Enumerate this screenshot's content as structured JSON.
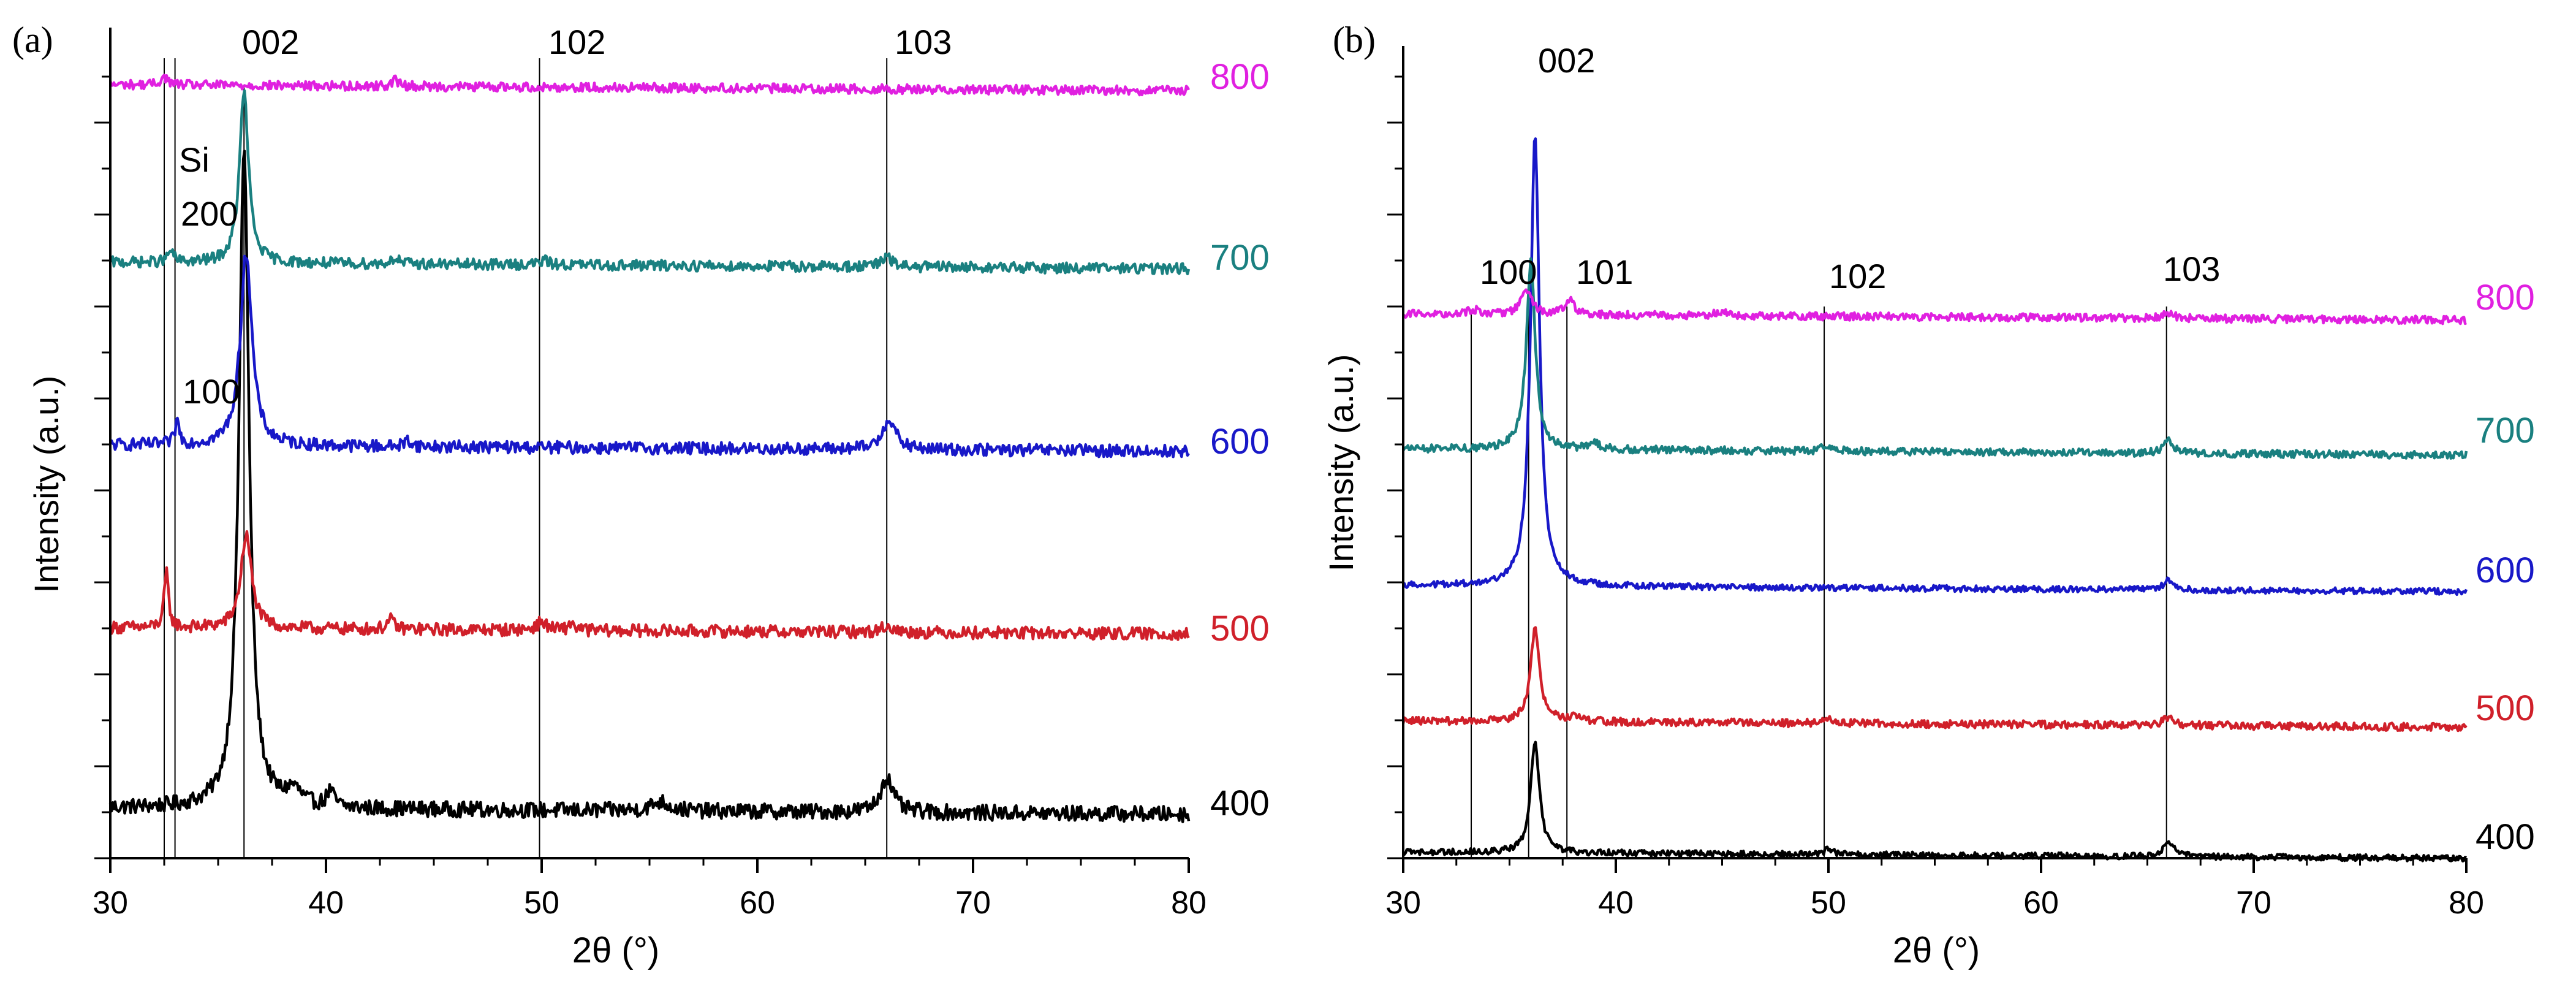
{
  "chart_data": [
    {
      "type": "line",
      "panel_label": "(a)",
      "xlabel": "2θ (°)",
      "ylabel": "Intensity (a.u.)",
      "xlim": [
        30,
        80
      ],
      "x_ticks": [
        30,
        40,
        50,
        60,
        70,
        80
      ],
      "y_ticks_labeled": false,
      "series": [
        {
          "name": "400",
          "color": "#000000",
          "baseline": 0.05,
          "noise": 0.01,
          "peaks": [
            [
              36.2,
              0.85,
              0.28
            ],
            [
              38.5,
              0.02,
              0.4
            ],
            [
              40.2,
              0.02,
              0.2
            ],
            [
              55.5,
              0.012,
              0.5
            ],
            [
              66.0,
              0.045,
              0.35
            ]
          ]
        },
        {
          "name": "500",
          "color": "#d0202a",
          "baseline": 0.255,
          "noise": 0.008,
          "peaks": [
            [
              32.6,
              0.07,
              0.12
            ],
            [
              36.3,
              0.12,
              0.3
            ],
            [
              43.0,
              0.012,
              0.2
            ],
            [
              50.0,
              0.01,
              0.3
            ],
            [
              51.4,
              0.01,
              0.15
            ],
            [
              66.0,
              0.008,
              0.3
            ]
          ]
        },
        {
          "name": "600",
          "color": "#1818c8",
          "baseline": 0.465,
          "noise": 0.008,
          "peaks": [
            [
              33.1,
              0.03,
              0.12
            ],
            [
              36.3,
              0.25,
              0.32
            ],
            [
              43.8,
              0.008,
              0.2
            ],
            [
              66.1,
              0.04,
              0.35
            ]
          ]
        },
        {
          "name": "700",
          "color": "#1a8080",
          "baseline": 0.665,
          "noise": 0.007,
          "peaks": [
            [
              32.8,
              0.015,
              0.15
            ],
            [
              36.2,
              0.22,
              0.25
            ],
            [
              43.2,
              0.008,
              0.2
            ],
            [
              50.1,
              0.005,
              0.3
            ],
            [
              66.0,
              0.012,
              0.3
            ]
          ]
        },
        {
          "name": "800",
          "color": "#e020e0",
          "baseline": 0.865,
          "noise": 0.006,
          "peaks": [
            [
              32.5,
              0.01,
              0.2
            ],
            [
              43.2,
              0.008,
              0.2
            ]
          ]
        }
      ],
      "reference_lines": [
        32.5,
        33.0,
        36.2,
        49.9,
        66.0
      ],
      "annotations": [
        {
          "text": "002",
          "x": 36.2
        },
        {
          "text": "102",
          "x": 50.0
        },
        {
          "text": "103",
          "x": 66.0
        },
        {
          "text": "Si",
          "x": 32.8
        },
        {
          "text": "200",
          "x": 33.5
        },
        {
          "text": "100",
          "x": 33.5
        }
      ]
    },
    {
      "type": "line",
      "panel_label": "(b)",
      "xlabel": "2θ (°)",
      "ylabel": "Intensity (a.u.)",
      "xlim": [
        30,
        80
      ],
      "x_ticks": [
        30,
        40,
        50,
        60,
        70,
        80
      ],
      "y_ticks_labeled": false,
      "series": [
        {
          "name": "400",
          "color": "#000000",
          "baseline": 0.01,
          "noise": 0.004,
          "peaks": [
            [
              36.2,
              0.14,
              0.25
            ],
            [
              50.0,
              0.006,
              0.3
            ],
            [
              66.0,
              0.02,
              0.3
            ]
          ]
        },
        {
          "name": "500",
          "color": "#d0202a",
          "baseline": 0.17,
          "noise": 0.005,
          "peaks": [
            [
              36.2,
              0.12,
              0.25
            ],
            [
              38.0,
              0.005,
              0.5
            ],
            [
              50.0,
              0.005,
              0.3
            ],
            [
              66.0,
              0.01,
              0.3
            ]
          ]
        },
        {
          "name": "600",
          "color": "#1818c8",
          "baseline": 0.33,
          "noise": 0.004,
          "peaks": [
            [
              36.2,
              0.58,
              0.25
            ],
            [
              66.0,
              0.012,
              0.3
            ]
          ]
        },
        {
          "name": "700",
          "color": "#1a8080",
          "baseline": 0.495,
          "noise": 0.005,
          "peaks": [
            [
              36.0,
              0.24,
              0.25
            ],
            [
              39.0,
              0.008,
              0.3
            ],
            [
              50.0,
              0.008,
              0.3
            ],
            [
              66.0,
              0.015,
              0.3
            ]
          ]
        },
        {
          "name": "800",
          "color": "#e020e0",
          "baseline": 0.665,
          "noise": 0.005,
          "peaks": [
            [
              33.3,
              0.006,
              0.3
            ],
            [
              35.8,
              0.03,
              0.3
            ],
            [
              37.8,
              0.02,
              0.25
            ],
            [
              45.0,
              0.006,
              0.3
            ],
            [
              66.0,
              0.006,
              0.3
            ]
          ]
        }
      ],
      "reference_lines": [
        33.2,
        35.9,
        37.7,
        49.8,
        65.9
      ],
      "annotations": [
        {
          "text": "002",
          "x": 36.3
        },
        {
          "text": "100",
          "x": 33.5
        },
        {
          "text": "101",
          "x": 39.0
        },
        {
          "text": "102",
          "x": 50.0
        },
        {
          "text": "103",
          "x": 65.9
        }
      ]
    }
  ]
}
